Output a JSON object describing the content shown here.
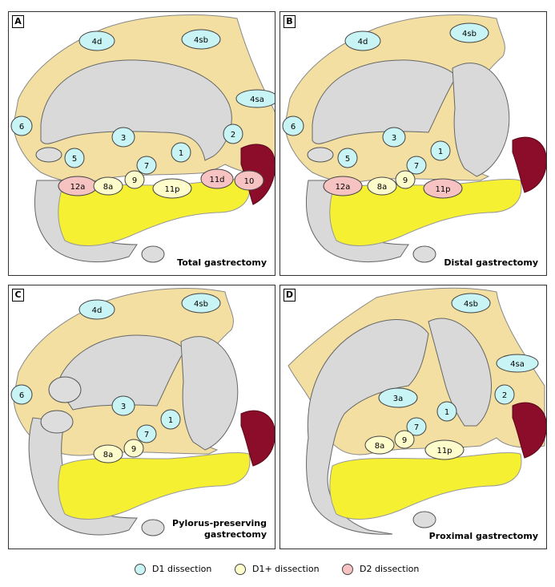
{
  "colors": {
    "fat": "#f3dfa1",
    "stomach": "#d9d9d9",
    "pancreas": "#f5f032",
    "spleen": "#8c0d2a",
    "d1": "#c8f4f5",
    "d1plus": "#fffccb",
    "d2": "#f7c2c2"
  },
  "panels": [
    {
      "letter": "A",
      "caption": "Total gastrectomy",
      "nodes": [
        {
          "label": "4d",
          "type": "d1"
        },
        {
          "label": "4sb",
          "type": "d1"
        },
        {
          "label": "4sa",
          "type": "d1"
        },
        {
          "label": "6",
          "type": "d1"
        },
        {
          "label": "3",
          "type": "d1"
        },
        {
          "label": "2",
          "type": "d1"
        },
        {
          "label": "5",
          "type": "d1"
        },
        {
          "label": "1",
          "type": "d1"
        },
        {
          "label": "7",
          "type": "d1"
        },
        {
          "label": "9",
          "type": "d1plus"
        },
        {
          "label": "12a",
          "type": "d2"
        },
        {
          "label": "8a",
          "type": "d1plus"
        },
        {
          "label": "11p",
          "type": "d1plus"
        },
        {
          "label": "11d",
          "type": "d2"
        },
        {
          "label": "10",
          "type": "d2"
        }
      ]
    },
    {
      "letter": "B",
      "caption": "Distal gastrectomy",
      "nodes": [
        {
          "label": "4d",
          "type": "d1"
        },
        {
          "label": "4sb",
          "type": "d1"
        },
        {
          "label": "6",
          "type": "d1"
        },
        {
          "label": "3",
          "type": "d1"
        },
        {
          "label": "5",
          "type": "d1"
        },
        {
          "label": "1",
          "type": "d1"
        },
        {
          "label": "7",
          "type": "d1"
        },
        {
          "label": "9",
          "type": "d1plus"
        },
        {
          "label": "12a",
          "type": "d2"
        },
        {
          "label": "8a",
          "type": "d1plus"
        },
        {
          "label": "11p",
          "type": "d2"
        }
      ]
    },
    {
      "letter": "C",
      "caption": "Pylorus-preserving gastrectomy",
      "nodes": [
        {
          "label": "4d",
          "type": "d1"
        },
        {
          "label": "4sb",
          "type": "d1"
        },
        {
          "label": "6",
          "type": "d1"
        },
        {
          "label": "3",
          "type": "d1"
        },
        {
          "label": "1",
          "type": "d1"
        },
        {
          "label": "7",
          "type": "d1"
        },
        {
          "label": "9",
          "type": "d1plus"
        },
        {
          "label": "8a",
          "type": "d1plus"
        }
      ]
    },
    {
      "letter": "D",
      "caption": "Proximal gastrectomy",
      "nodes": [
        {
          "label": "4sb",
          "type": "d1"
        },
        {
          "label": "4sa",
          "type": "d1"
        },
        {
          "label": "3a",
          "type": "d1"
        },
        {
          "label": "2",
          "type": "d1"
        },
        {
          "label": "1",
          "type": "d1"
        },
        {
          "label": "7",
          "type": "d1"
        },
        {
          "label": "9",
          "type": "d1plus"
        },
        {
          "label": "8a",
          "type": "d1plus"
        },
        {
          "label": "11p",
          "type": "d1plus"
        }
      ]
    }
  ],
  "legend": [
    {
      "label": "D1 dissection",
      "type": "d1"
    },
    {
      "label": "D1+ dissection",
      "type": "d1plus"
    },
    {
      "label": "D2 dissection",
      "type": "d2"
    }
  ]
}
